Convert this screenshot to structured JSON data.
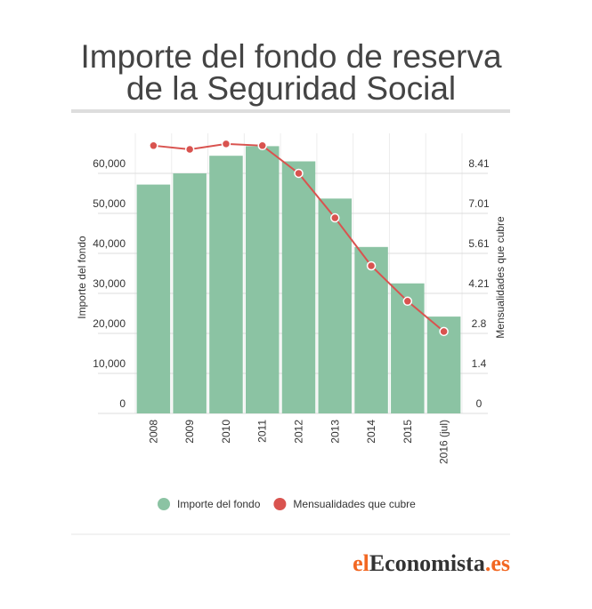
{
  "chart_data": {
    "type": "bar_line",
    "title": [
      "Importe del fondo de reserva",
      "de la Seguridad Social"
    ],
    "y_label": "Importe del fondo",
    "y2_label": "Mensualidades que cubre",
    "categories": [
      "2008",
      "2009",
      "2010",
      "2011",
      "2012",
      "2013",
      "2014",
      "2015",
      "2016 (jul)"
    ],
    "series": [
      {
        "name": "Importe del fondo",
        "type": "bar",
        "color": "#8bc3a3",
        "values": [
          57200,
          60000,
          64400,
          66800,
          63000,
          53700,
          41600,
          32500,
          24200
        ]
      },
      {
        "name": "Mensualidades que cubre",
        "type": "line",
        "axis": "y2",
        "color": "#d9534f",
        "values": [
          9.38,
          9.25,
          9.44,
          9.38,
          8.41,
          6.85,
          5.17,
          3.93,
          2.87
        ]
      }
    ],
    "ylim": [
      0,
      70000
    ],
    "yticks": [
      0,
      {
        "value": 10000,
        "label": "10,000"
      },
      {
        "value": 20000,
        "label": "20,000"
      },
      {
        "value": 30000,
        "label": "30,000"
      },
      {
        "value": 40000,
        "label": "40,000"
      },
      {
        "value": 50000,
        "label": "50,000"
      },
      {
        "value": 60000,
        "label": "60,000"
      }
    ],
    "y2lim": [
      0,
      9.81
    ],
    "y2ticks": [
      0,
      1.4,
      2.8,
      4.21,
      5.61,
      7.01,
      8.41
    ],
    "grid": true
  },
  "logo": {
    "prefix": "el",
    "name": "Economista",
    "suffix": ".es"
  }
}
